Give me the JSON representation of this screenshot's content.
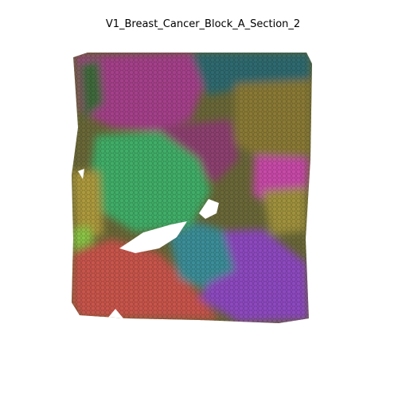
{
  "title": "V1_Breast_Cancer_Block_A_Section_2"
}
